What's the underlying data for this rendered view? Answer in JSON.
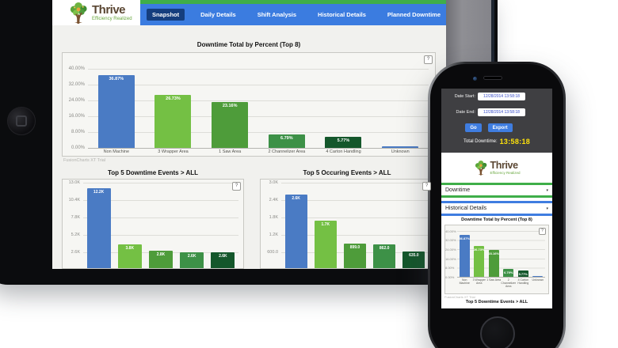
{
  "brand": {
    "name": "Thrive",
    "tagline": "Efficiency Realized"
  },
  "help_button": "?",
  "watermark": "FusionCharts XT Trial",
  "tablet_nav": {
    "tabs": [
      {
        "label": "Snapshot",
        "active": true
      },
      {
        "label": "Daily Details",
        "active": false
      },
      {
        "label": "Shift Analysis",
        "active": false
      },
      {
        "label": "Historical Details",
        "active": false
      },
      {
        "label": "Planned Downtime",
        "active": false
      }
    ]
  },
  "phone": {
    "date_start_label": "Date Start:",
    "date_start_value": "12/28/2014 13:58:18",
    "date_end_label": "Date End:",
    "date_end_value": "12/28/2014 13:58:18",
    "go_button": "Go",
    "export_button": "Export",
    "total_downtime_label": "Total Downtime:",
    "total_downtime_value": "13:58:18",
    "select_downtime": "Downtime",
    "select_report": "Historical Details",
    "caret": "▾"
  },
  "chart_data": [
    {
      "id": "downtime_total_by_percent",
      "type": "bar",
      "title": "Downtime Total by Percent (Top 8)",
      "categories": [
        "Non Machine",
        "3 Wrapper Area",
        "1 Saw Area",
        "2 Channelizer Area",
        "4 Carton Handling",
        "Unknown"
      ],
      "values": [
        36.87,
        26.73,
        23.16,
        6.79,
        5.77,
        0.69
      ],
      "labels": [
        "36.87%",
        "26.73%",
        "23.16%",
        "6.79%",
        "5.77%",
        ""
      ],
      "yticks": [
        "40.00%",
        "32.00%",
        "24.00%",
        "16.00%",
        "8.00%",
        "0.00%"
      ],
      "ylim": [
        0,
        40
      ],
      "ylabel": "",
      "xlabel": "",
      "grid": true,
      "colors": [
        "#4a7bc4",
        "#74c044",
        "#4e9c3a",
        "#3d9147",
        "#14572b",
        "#4a7bc4"
      ]
    },
    {
      "id": "top5_downtime_events",
      "type": "bar",
      "title": "Top 5 Downtime Events > ALL",
      "categories": [],
      "values": [
        12.2,
        3.8,
        2.8,
        2.6,
        2.6
      ],
      "labels": [
        "12.2K",
        "3.8K",
        "2.8K",
        "2.6K",
        "2.6K"
      ],
      "yticks": [
        "13.0K",
        "10.4K",
        "7.8K",
        "5.2K",
        "2.6K"
      ],
      "ylim": [
        0,
        13
      ],
      "ylabel": "",
      "xlabel": "",
      "grid": true,
      "colors": [
        "#4a7bc4",
        "#74c044",
        "#4e9c3a",
        "#3d9147",
        "#14572b"
      ]
    },
    {
      "id": "top5_occuring_events",
      "type": "bar",
      "title": "Top 5 Occuring Events > ALL",
      "categories": [],
      "values": [
        2600,
        1700,
        899,
        862,
        635
      ],
      "labels": [
        "2.6K",
        "1.7K",
        "899.0",
        "862.0",
        "635.0"
      ],
      "yticks": [
        "3.0K",
        "2.4K",
        "1.8K",
        "1.2K",
        "600.0"
      ],
      "ylim": [
        0,
        3000
      ],
      "ylabel": "",
      "xlabel": "",
      "grid": true,
      "colors": [
        "#4a7bc4",
        "#74c044",
        "#4e9c3a",
        "#3d9147",
        "#14572b"
      ]
    }
  ],
  "colors": {
    "nav_blue": "#3b7ce0",
    "nav_active_tab": "#153e7e",
    "accent_green": "#3fae49",
    "time_yellow": "#ffe30a",
    "brand_brown": "#5a4632",
    "brand_green": "#68a73d"
  }
}
